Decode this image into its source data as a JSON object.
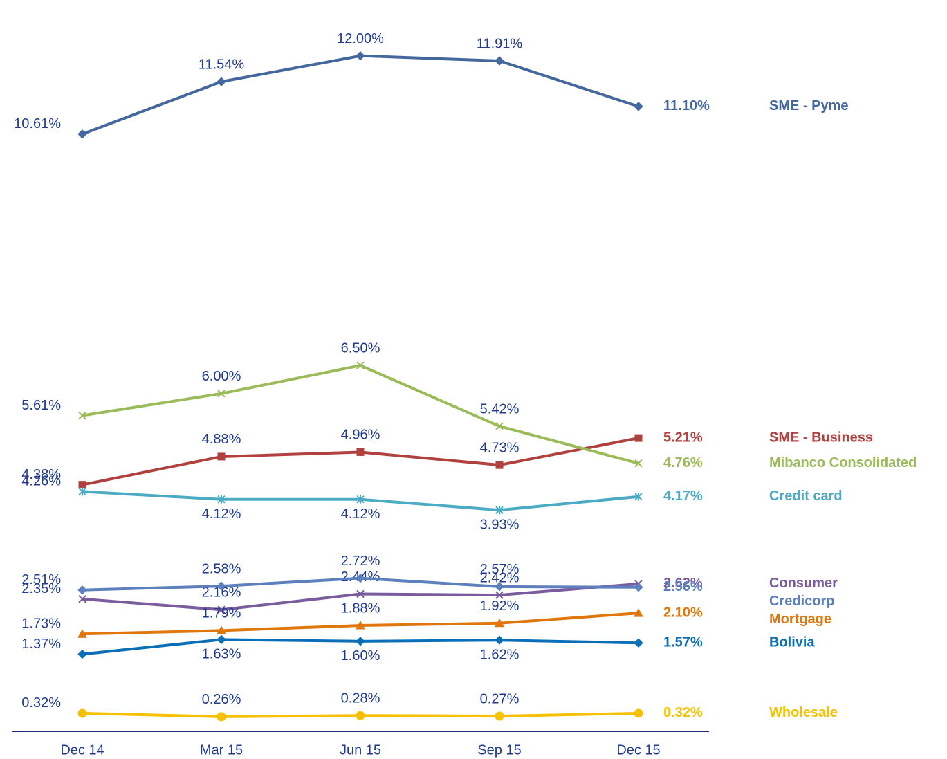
{
  "chart_data": {
    "type": "line",
    "categories": [
      "Dec 14",
      "Mar 15",
      "Jun 15",
      "Sep 15",
      "Dec 15"
    ],
    "ylim": [
      0,
      12.5
    ],
    "series": [
      {
        "name": "SME - Pyme",
        "color": "#44689e",
        "marker": "diamond",
        "values": [
          10.61,
          11.54,
          12.0,
          11.91,
          11.1
        ],
        "value_labels": [
          "10.61%",
          "11.54%",
          "12.00%",
          "11.91%",
          "11.10%"
        ]
      },
      {
        "name": "SME - Business",
        "color": "#b0413e",
        "marker": "square",
        "values": [
          4.38,
          4.88,
          4.96,
          4.73,
          5.21
        ],
        "value_labels": [
          "4.38%",
          "4.88%",
          "4.96%",
          "4.73%",
          "5.21%"
        ]
      },
      {
        "name": "Mibanco Consolidated",
        "color": "#9bbb59",
        "marker": "x",
        "values": [
          5.61,
          6.0,
          6.5,
          5.42,
          4.76
        ],
        "value_labels": [
          "5.61%",
          "6.00%",
          "6.50%",
          "5.42%",
          "4.76%"
        ]
      },
      {
        "name": "Credit card",
        "color": "#4babc5",
        "marker": "star",
        "values": [
          4.26,
          4.12,
          4.12,
          3.93,
          4.17
        ],
        "value_labels": [
          "4.26%",
          "4.12%",
          "4.12%",
          "3.93%",
          "4.17%"
        ]
      },
      {
        "name": "Consumer",
        "color": "#7a5c9e",
        "marker": "x",
        "values": [
          2.35,
          2.16,
          2.44,
          2.42,
          2.62
        ],
        "value_labels": [
          "2.35%",
          "2.16%",
          "2.44%",
          "2.42%",
          "2.62%"
        ]
      },
      {
        "name": "Credicorp",
        "color": "#5b80bd",
        "marker": "diamond",
        "values": [
          2.51,
          2.58,
          2.72,
          2.57,
          2.56
        ],
        "value_labels": [
          "2.51%",
          "2.58%",
          "2.72%",
          "2.57%",
          "2.56%"
        ]
      },
      {
        "name": "Mortgage",
        "color": "#e0770d",
        "marker": "triangle",
        "values": [
          1.73,
          1.79,
          1.88,
          1.92,
          2.1
        ],
        "value_labels": [
          "1.73%",
          "1.79%",
          "1.88%",
          "1.92%",
          "2.10%"
        ]
      },
      {
        "name": "Bolivia",
        "color": "#0a6fb8",
        "marker": "diamond",
        "values": [
          1.37,
          1.63,
          1.6,
          1.62,
          1.57
        ],
        "value_labels": [
          "1.37%",
          "1.63%",
          "1.60%",
          "1.62%",
          "1.57%"
        ]
      },
      {
        "name": "Wholesale",
        "color": "#f7c000",
        "marker": "circle",
        "values": [
          0.32,
          0.26,
          0.28,
          0.27,
          0.32
        ],
        "value_labels": [
          "0.32%",
          "0.26%",
          "0.28%",
          "0.27%",
          "0.32%"
        ]
      }
    ]
  }
}
